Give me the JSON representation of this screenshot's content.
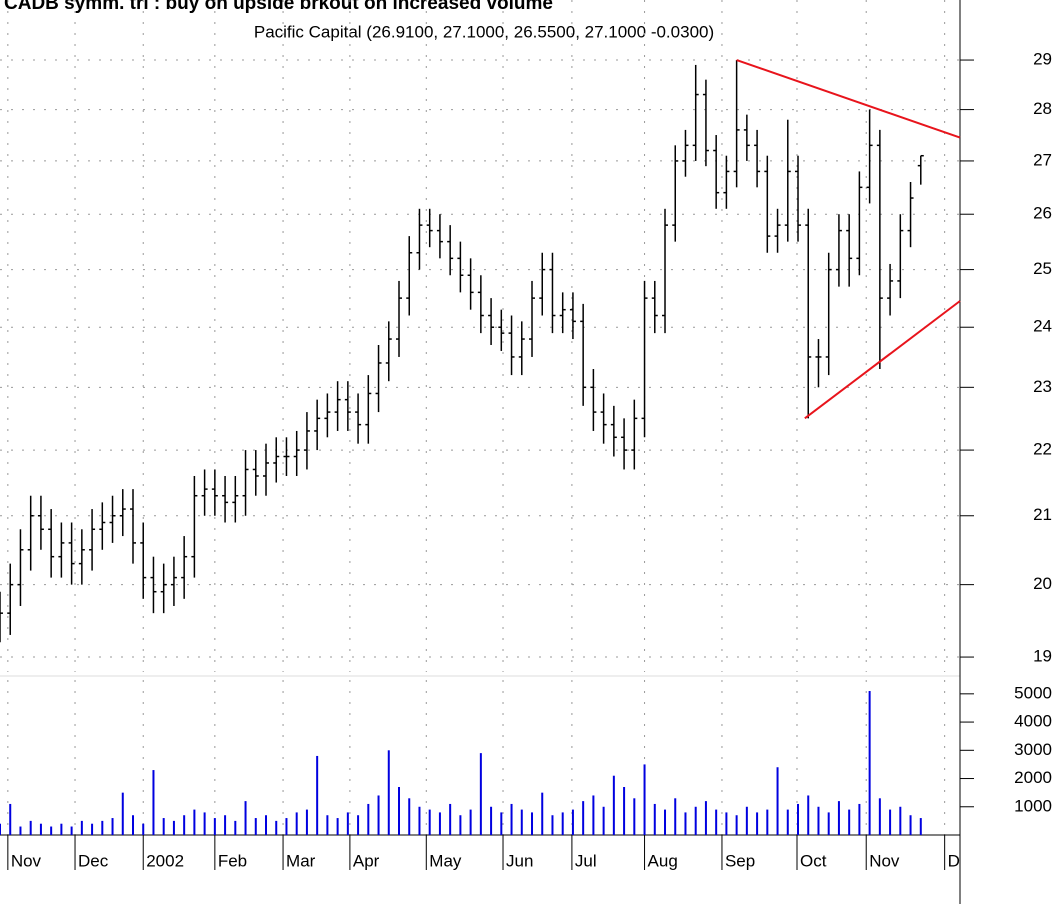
{
  "chart_data": [
    {
      "type": "ohlc",
      "title": "CADB symm. tri : buy on upside brkout on increased volume",
      "subtitle": "Pacific Capital (26.9100, 27.1000, 26.5500, 27.1000 -0.0300)",
      "log_y": true,
      "grid": true,
      "color": "#000000",
      "xlim": [
        0,
        281.5
      ],
      "ylim": [
        18.8,
        30.26
      ],
      "yticks": [
        19,
        20,
        21,
        22,
        23,
        24,
        25,
        26,
        27,
        28,
        29
      ],
      "x": [
        0,
        3,
        6,
        9,
        12,
        15,
        18,
        21,
        24,
        27,
        30,
        33,
        36,
        39,
        42,
        45,
        48,
        51,
        54,
        57,
        60,
        63,
        66,
        69,
        72,
        75,
        78,
        81,
        84,
        87,
        90,
        93,
        96,
        99,
        102,
        105,
        108,
        111,
        114,
        117,
        120,
        123,
        126,
        129,
        132,
        135,
        138,
        141,
        144,
        147,
        150,
        153,
        156,
        159,
        162,
        165,
        168,
        171,
        174,
        177,
        180,
        183,
        186,
        189,
        192,
        195,
        198,
        201,
        204,
        207,
        210,
        213,
        216,
        219,
        222,
        225,
        228,
        231,
        234,
        237,
        240,
        243,
        246,
        249,
        252,
        255,
        258,
        261,
        264,
        267,
        270
      ],
      "open": [
        19.5,
        19.6,
        20.0,
        20.5,
        21.0,
        20.8,
        20.4,
        20.6,
        20.3,
        20.5,
        20.8,
        20.9,
        21.0,
        21.1,
        20.6,
        20.1,
        19.9,
        20.0,
        20.1,
        20.4,
        21.3,
        21.4,
        21.3,
        21.2,
        21.3,
        21.7,
        21.6,
        21.8,
        21.9,
        21.9,
        22.0,
        22.3,
        22.5,
        22.6,
        22.8,
        22.6,
        22.4,
        22.9,
        23.4,
        23.8,
        24.5,
        25.3,
        25.8,
        25.7,
        25.5,
        25.2,
        24.9,
        24.6,
        24.2,
        24.0,
        23.9,
        23.5,
        23.8,
        24.5,
        25.0,
        24.2,
        24.3,
        24.1,
        23.0,
        22.6,
        22.4,
        22.2,
        22.0,
        22.5,
        24.5,
        24.2,
        25.8,
        27.0,
        27.3,
        28.3,
        27.2,
        26.4,
        26.8,
        27.6,
        27.3,
        26.8,
        25.6,
        25.8,
        26.8,
        25.8,
        23.5,
        23.5,
        25.0,
        25.7,
        25.2,
        26.5,
        27.3,
        24.5,
        24.8,
        25.7,
        26.91
      ],
      "high": [
        19.9,
        20.3,
        20.8,
        21.3,
        21.3,
        21.1,
        20.9,
        20.9,
        20.8,
        21.1,
        21.2,
        21.3,
        21.4,
        21.4,
        20.9,
        20.4,
        20.3,
        20.4,
        20.7,
        21.6,
        21.7,
        21.7,
        21.6,
        21.6,
        22.0,
        22.0,
        22.1,
        22.2,
        22.2,
        22.3,
        22.6,
        22.8,
        22.9,
        23.1,
        23.1,
        22.9,
        23.2,
        23.7,
        24.1,
        24.8,
        25.6,
        26.1,
        26.1,
        26.0,
        25.8,
        25.5,
        25.2,
        24.9,
        24.5,
        24.3,
        24.2,
        24.1,
        24.8,
        25.3,
        25.3,
        24.6,
        24.6,
        24.4,
        23.3,
        22.9,
        22.7,
        22.5,
        22.8,
        24.8,
        24.8,
        26.1,
        27.3,
        27.6,
        28.9,
        28.6,
        27.5,
        27.1,
        29.0,
        27.9,
        27.6,
        27.1,
        26.1,
        27.8,
        27.1,
        26.1,
        23.8,
        25.3,
        26.0,
        26.0,
        26.8,
        28.0,
        27.6,
        25.1,
        26.0,
        26.6,
        27.1
      ],
      "low": [
        19.2,
        19.3,
        19.7,
        20.2,
        20.5,
        20.1,
        20.1,
        20.0,
        20.0,
        20.2,
        20.5,
        20.6,
        20.7,
        20.3,
        19.8,
        19.6,
        19.6,
        19.7,
        19.8,
        20.1,
        21.0,
        21.0,
        20.9,
        20.9,
        21.0,
        21.3,
        21.3,
        21.5,
        21.6,
        21.6,
        21.7,
        22.0,
        22.2,
        22.3,
        22.3,
        22.1,
        22.1,
        22.6,
        23.1,
        23.5,
        24.2,
        25.0,
        25.4,
        25.2,
        24.9,
        24.6,
        24.3,
        23.9,
        23.7,
        23.6,
        23.2,
        23.2,
        23.5,
        24.2,
        23.9,
        23.9,
        23.8,
        22.7,
        22.3,
        22.1,
        21.9,
        21.7,
        21.7,
        22.2,
        23.9,
        23.9,
        25.5,
        26.7,
        27.0,
        26.9,
        26.1,
        26.1,
        26.5,
        27.0,
        26.5,
        25.3,
        25.3,
        25.5,
        25.5,
        22.5,
        23.0,
        23.2,
        24.7,
        24.7,
        24.9,
        26.2,
        23.3,
        24.2,
        24.5,
        25.4,
        26.55
      ],
      "close": [
        19.6,
        20.0,
        20.5,
        21.0,
        20.8,
        20.4,
        20.6,
        20.3,
        20.5,
        20.8,
        20.9,
        21.0,
        21.1,
        20.6,
        20.1,
        19.9,
        20.0,
        20.1,
        20.4,
        21.3,
        21.4,
        21.3,
        21.2,
        21.3,
        21.7,
        21.6,
        21.8,
        21.9,
        21.9,
        22.0,
        22.3,
        22.5,
        22.6,
        22.8,
        22.6,
        22.4,
        22.9,
        23.4,
        23.8,
        24.5,
        25.3,
        25.8,
        25.7,
        25.5,
        25.2,
        24.9,
        24.6,
        24.2,
        24.0,
        23.9,
        23.5,
        23.8,
        24.5,
        25.0,
        24.2,
        24.3,
        24.1,
        23.0,
        22.6,
        22.4,
        22.2,
        22.0,
        22.5,
        24.5,
        24.2,
        25.8,
        27.0,
        27.3,
        28.3,
        27.2,
        26.4,
        26.8,
        27.6,
        27.3,
        26.8,
        25.6,
        25.8,
        26.8,
        25.8,
        23.5,
        23.5,
        25.0,
        25.7,
        25.2,
        26.5,
        27.3,
        24.5,
        24.8,
        25.7,
        26.3,
        27.1
      ],
      "trendlines": [
        {
          "color": "#e8141c",
          "x": [
            216,
            281.5
          ],
          "y": [
            29.0,
            27.45
          ]
        },
        {
          "color": "#e8141c",
          "x": [
            236,
            281.5
          ],
          "y": [
            22.5,
            24.45
          ]
        }
      ]
    },
    {
      "type": "bar",
      "color": "#0000e0",
      "grid": true,
      "xlim": [
        0,
        281.5
      ],
      "ylim": [
        0,
        5490
      ],
      "yticks": [
        1000,
        2000,
        3000,
        4000,
        5000
      ],
      "xticks": [
        {
          "value": 2.3,
          "label": "Nov"
        },
        {
          "value": 22,
          "label": "Dec"
        },
        {
          "value": 42,
          "label": "2002"
        },
        {
          "value": 63,
          "label": "Feb"
        },
        {
          "value": 83,
          "label": "Mar"
        },
        {
          "value": 102.6,
          "label": "Apr"
        },
        {
          "value": 125,
          "label": "May"
        },
        {
          "value": 147.5,
          "label": "Jun"
        },
        {
          "value": 167.7,
          "label": "Jul"
        },
        {
          "value": 189,
          "label": "Aug"
        },
        {
          "value": 211.7,
          "label": "Sep"
        },
        {
          "value": 233.7,
          "label": "Oct"
        },
        {
          "value": 254,
          "label": "Nov"
        },
        {
          "value": 277,
          "label": "D"
        }
      ],
      "x": [
        0,
        3,
        6,
        9,
        12,
        15,
        18,
        21,
        24,
        27,
        30,
        33,
        36,
        39,
        42,
        45,
        48,
        51,
        54,
        57,
        60,
        63,
        66,
        69,
        72,
        75,
        78,
        81,
        84,
        87,
        90,
        93,
        96,
        99,
        102,
        105,
        108,
        111,
        114,
        117,
        120,
        123,
        126,
        129,
        132,
        135,
        138,
        141,
        144,
        147,
        150,
        153,
        156,
        159,
        162,
        165,
        168,
        171,
        174,
        177,
        180,
        183,
        186,
        189,
        192,
        195,
        198,
        201,
        204,
        207,
        210,
        213,
        216,
        219,
        222,
        225,
        228,
        231,
        234,
        237,
        240,
        243,
        246,
        249,
        252,
        255,
        258,
        261,
        264,
        267,
        270
      ],
      "values": [
        400,
        1100,
        300,
        500,
        400,
        300,
        400,
        300,
        500,
        400,
        500,
        600,
        1500,
        700,
        400,
        2300,
        600,
        500,
        700,
        900,
        800,
        600,
        700,
        500,
        1200,
        600,
        700,
        500,
        600,
        800,
        900,
        2800,
        700,
        600,
        800,
        700,
        1100,
        1400,
        3000,
        1700,
        1300,
        1000,
        900,
        800,
        1100,
        700,
        900,
        2900,
        1000,
        800,
        1100,
        900,
        800,
        1500,
        700,
        800,
        900,
        1200,
        1400,
        1000,
        2100,
        1700,
        1300,
        2500,
        1100,
        900,
        1300,
        800,
        1000,
        1200,
        900,
        800,
        700,
        1000,
        800,
        900,
        2400,
        900,
        1100,
        1400,
        1000,
        800,
        1200,
        900,
        1100,
        5100,
        1300,
        900,
        1000,
        700,
        600
      ]
    }
  ]
}
